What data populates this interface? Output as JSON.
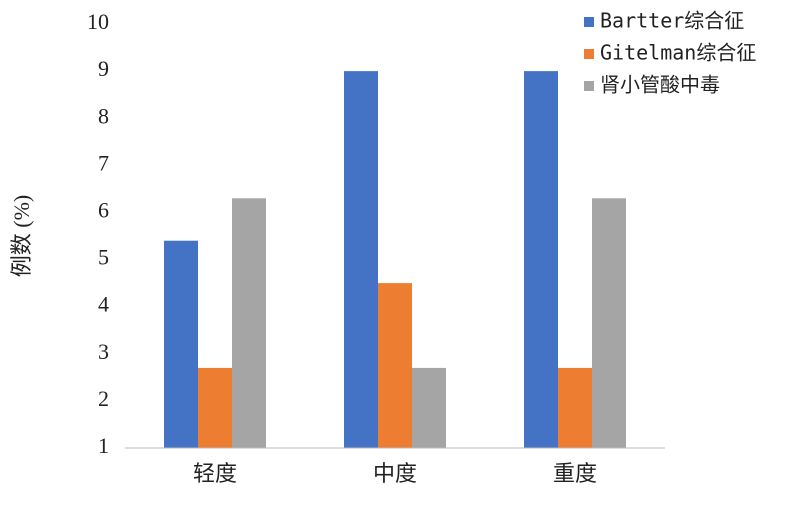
{
  "chart_data": {
    "type": "bar",
    "y_label": "例数 (%)",
    "categories": [
      "轻度",
      "中度",
      "重度"
    ],
    "series": [
      {
        "name": "Bartter综合征",
        "color": "#4472c4",
        "values": [
          5.4,
          9,
          9
        ]
      },
      {
        "name": "Gitelman综合征",
        "color": "#ed7d31",
        "values": [
          2.7,
          4.5,
          2.7
        ]
      },
      {
        "name": "肾小管酸中毒",
        "color": "#a5a5a5",
        "values": [
          6.3,
          2.7,
          6.3
        ]
      }
    ],
    "ylim": [
      1,
      10
    ],
    "yticks": [
      1,
      2,
      3,
      4,
      5,
      6,
      7,
      8,
      9,
      10
    ],
    "grid": false,
    "legend": "top-right"
  }
}
